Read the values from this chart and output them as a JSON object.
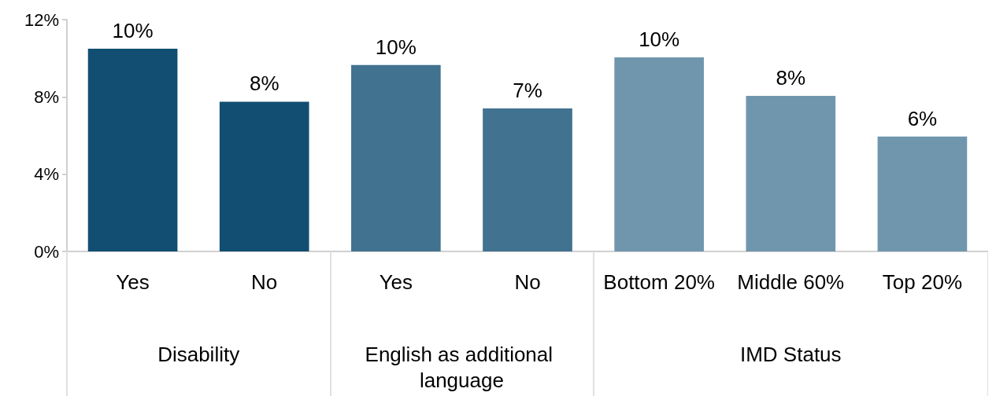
{
  "chart_data": {
    "type": "bar",
    "categories": [
      "Yes",
      "No",
      "Yes",
      "No",
      "Bottom 20%",
      "Middle 60%",
      "Top 20%"
    ],
    "values": [
      10.5,
      7.75,
      9.65,
      7.4,
      10.05,
      8.05,
      5.95
    ],
    "value_labels": [
      "10%",
      "8%",
      "10%",
      "7%",
      "10%",
      "8%",
      "6%"
    ],
    "colors": [
      "#114e72",
      "#114e72",
      "#41728f",
      "#41728f",
      "#7096ae",
      "#7096ae",
      "#7096ae"
    ],
    "annotations": [
      "Disability",
      "English as additional language",
      "IMD Status"
    ],
    "ylim": [
      0,
      12
    ],
    "yticks": [
      {
        "value": 0,
        "label": "0%"
      },
      {
        "value": 4,
        "label": "4%"
      },
      {
        "value": 8,
        "label": "8%"
      },
      {
        "value": 12,
        "label": "12%"
      }
    ],
    "grid": false
  }
}
